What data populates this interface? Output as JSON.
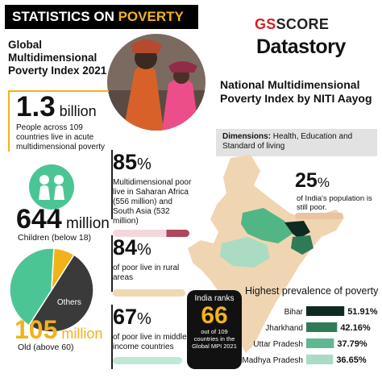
{
  "header": {
    "banner_part1": "STATISTICS ON ",
    "banner_part2": "POVERTY",
    "brand_line1_a": "GS",
    "brand_line1_b": "SCORE",
    "brand_line2": "Datastory"
  },
  "global": {
    "heading": "Global Multidimensional Poverty Index 2021",
    "stat_value": "1.3",
    "stat_unit": " billion",
    "stat_text": "People across 109 countries live in acute multidimensional poverty"
  },
  "national": {
    "heading": "National Multidimensional Poverty Index by NITI Aayog",
    "dims_label": "Dimensions:",
    "dims_text": " Health, Education and Standard of living",
    "pct_value": "25",
    "pct_sign": "%",
    "pct_text": "of India's population is still poor."
  },
  "children": {
    "value": "644",
    "unit": " million",
    "label": "Children (below 18)"
  },
  "old": {
    "value": "105",
    "unit": " million",
    "label": "Old (above 60)"
  },
  "stats": [
    {
      "value": "85",
      "sign": "%",
      "text": "Multidimensional poor live in Saharan Africa (556 million) and South Asia (532 million)"
    },
    {
      "value": "84",
      "sign": "%",
      "text": "of poor live in rural areas"
    },
    {
      "value": "67",
      "sign": "%",
      "text": "of poor live in middle income countries"
    }
  ],
  "india_badge": {
    "line1": "India ranks",
    "rank": "66",
    "line3": "out of 109 countries in the Global MPI 2021"
  },
  "colors": {
    "accent_yellow": "#f2b21b",
    "accent_green": "#4cc594",
    "brand_red": "#d71f27",
    "dark": "#111111"
  },
  "chart_data": [
    {
      "type": "pie",
      "title": "",
      "slices": [
        {
          "label": "Others",
          "value": 50.1,
          "color": "#3a3a3a"
        },
        {
          "label": "",
          "value": 41.8,
          "color": "#4cc594"
        },
        {
          "label": "",
          "value": 8.1,
          "color": "#f2b21b"
        }
      ]
    },
    {
      "type": "bar",
      "title": "Highest prevalence of poverty",
      "categories": [
        "Bihar",
        "Jharkhand",
        "Uttar Pradesh",
        "Madhya Pradesh"
      ],
      "values": [
        51.91,
        42.16,
        37.79,
        36.65
      ],
      "value_labels": [
        "51.91%",
        "42.16%",
        "37.79%",
        "36.65%"
      ],
      "colors": [
        "#0f2a20",
        "#2f7b58",
        "#5fb990",
        "#a9dcc3"
      ],
      "xlim": [
        0,
        55
      ]
    }
  ]
}
